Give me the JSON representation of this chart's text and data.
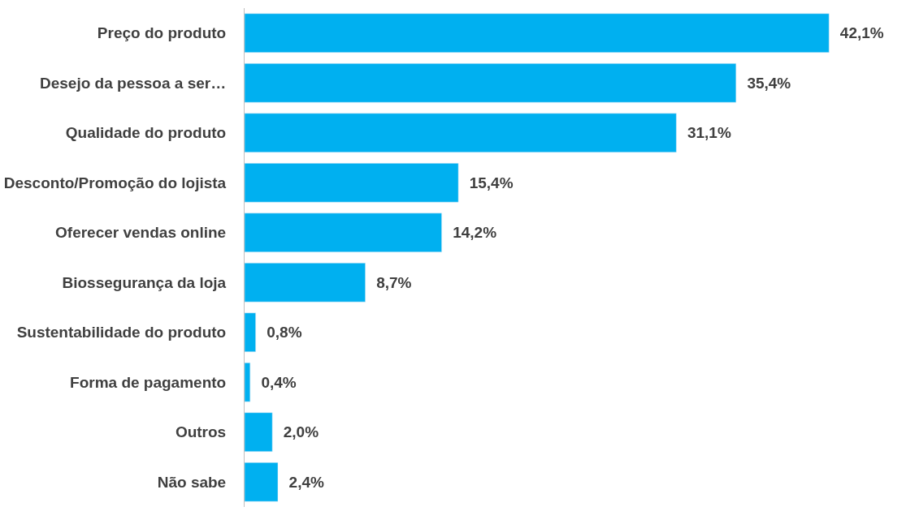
{
  "chart_data": {
    "type": "bar",
    "orientation": "horizontal",
    "categories": [
      "Preço do produto",
      "Desejo da pessoa a ser…",
      "Qualidade do produto",
      "Desconto/Promoção do lojista",
      "Oferecer vendas online",
      "Biossegurança da loja",
      "Sustentabilidade do produto",
      "Forma de pagamento",
      "Outros",
      "Não sabe"
    ],
    "values": [
      42.1,
      35.4,
      31.1,
      15.4,
      14.2,
      8.7,
      0.8,
      0.4,
      2.0,
      2.4
    ],
    "value_labels": [
      "42,1%",
      "35,4%",
      "31,1%",
      "15,4%",
      "14,2%",
      "8,7%",
      "0,8%",
      "0,4%",
      "2,0%",
      "2,4%"
    ],
    "color": "#00b0f0"
  }
}
